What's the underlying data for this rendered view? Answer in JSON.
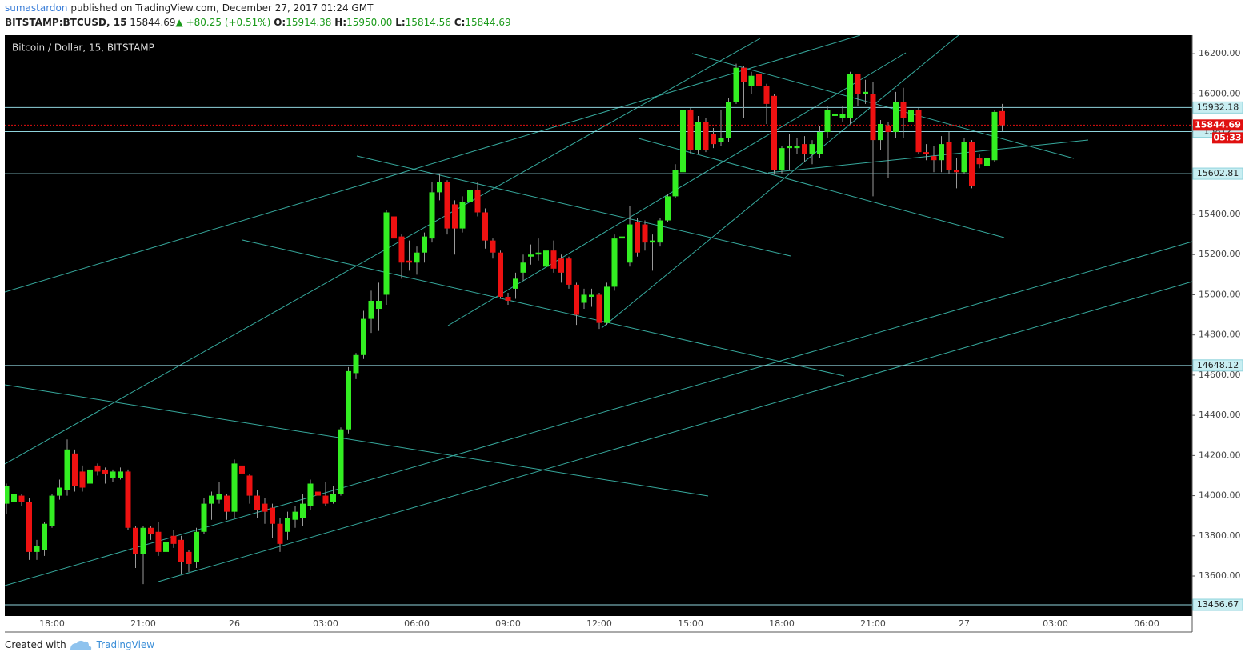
{
  "header": {
    "author": "sumastardon",
    "published": "published on TradingView.com, December 27, 2017 01:24 GMT",
    "symbol": "BITSTAMP:BTCUSD, 15",
    "price": "15844.69",
    "arrow": "▲",
    "change": "+80.25 (+0.51%)",
    "open_label": "O:",
    "open": "15914.38",
    "high_label": "H:",
    "high": "15950.00",
    "low_label": "L:",
    "low": "15814.56",
    "close_label": "C:",
    "close": "15844.69"
  },
  "footer": {
    "created": "Created with",
    "brand": "TradingView"
  },
  "chart_data": {
    "type": "candlestick",
    "title": "Bitcoin / Dollar, 15, BITSTAMP",
    "up_color": "#33ee22",
    "down_color": "#ee1111",
    "wick_color": "#9a9a9a",
    "level_color": "#8fd3dc",
    "last_color": "#e01010",
    "categories": [
      null,
      null,
      null,
      null,
      null,
      null,
      "18:00",
      null,
      null,
      null,
      null,
      null,
      null,
      null,
      null,
      null,
      null,
      null,
      "21:00",
      null,
      null,
      null,
      null,
      null,
      null,
      null,
      null,
      null,
      null,
      null,
      "26",
      null,
      null,
      null,
      null,
      null,
      null,
      null,
      null,
      null,
      null,
      null,
      "03:00",
      null,
      null,
      null,
      null,
      null,
      null,
      null,
      null,
      null,
      null,
      null,
      "06:00",
      null,
      null,
      null,
      null,
      null,
      null,
      null,
      null,
      null,
      null,
      null,
      "09:00",
      null,
      null,
      null,
      null,
      null,
      null,
      null,
      null,
      null,
      null,
      null,
      "12:00",
      null,
      null,
      null,
      null,
      null,
      null,
      null,
      null,
      null,
      null,
      null,
      "15:00",
      null,
      null,
      null,
      null,
      null,
      null,
      null,
      null,
      null,
      null,
      null,
      "18:00",
      null,
      null,
      null,
      null,
      null,
      null,
      null,
      null,
      null,
      null,
      null,
      "21:00",
      null,
      null,
      null,
      null,
      null,
      null,
      null,
      null,
      null,
      null,
      null,
      "27",
      null,
      null,
      null,
      null,
      null,
      null,
      null,
      null,
      null,
      null,
      null,
      "03:00",
      null,
      null,
      null,
      null,
      null,
      null,
      null,
      null,
      null,
      null,
      null,
      "06:00",
      null,
      null,
      null,
      null,
      null
    ],
    "open": [
      13960,
      13970,
      14000,
      13970,
      13720,
      13730,
      13850,
      14000,
      14030,
      14210,
      14120,
      14060,
      14150,
      14130,
      14090,
      14090,
      14120,
      13840,
      13710,
      13840,
      13820,
      13720,
      13800,
      13780,
      13720,
      13670,
      13820,
      13960,
      13980,
      14000,
      13920,
      14150,
      14100,
      14000,
      13960,
      13940,
      13860,
      13820,
      13880,
      13890,
      13950,
      14020,
      14000,
      13970,
      14010,
      14330,
      14610,
      14700,
      14880,
      14930,
      15000,
      15390,
      15290,
      15170,
      15160,
      15210,
      15280,
      15510,
      15560,
      15450,
      15330,
      15460,
      15520,
      15410,
      15270,
      15210,
      14990,
      15030,
      15110,
      15190,
      15200,
      15140,
      15220,
      15180,
      15180,
      15050,
      14960,
      14990,
      15000,
      14860,
      15040,
      15280,
      15160,
      15360,
      15350,
      15260,
      15260,
      15370,
      15490,
      15610,
      15920,
      15720,
      15860,
      15800,
      15760,
      15780,
      15960,
      16130,
      16040,
      16100,
      16040,
      15990,
      15620,
      15730,
      15730,
      15750,
      15700,
      15700,
      15810,
      15890,
      15880,
      15880,
      16100,
      16000,
      16000,
      15770,
      15840,
      15810,
      15960,
      15860,
      15920,
      15710,
      15690,
      15670,
      15760,
      15620,
      15610,
      15760,
      15680,
      15640,
      15670,
      15914.38,
      null,
      null,
      null,
      null,
      null,
      null,
      null,
      null,
      null,
      null,
      null,
      null,
      null,
      null,
      null,
      null,
      null,
      null,
      null,
      null,
      null,
      null,
      null,
      null
    ],
    "high": [
      14060,
      14030,
      14010,
      13990,
      13780,
      13870,
      14010,
      14080,
      14280,
      14230,
      14150,
      14170,
      14160,
      14140,
      14130,
      14140,
      14130,
      13850,
      13850,
      13850,
      13870,
      13820,
      13830,
      13800,
      13730,
      13840,
      13990,
      14020,
      14070,
      14010,
      14180,
      14230,
      14110,
      14030,
      13990,
      13960,
      13890,
      13920,
      13950,
      14010,
      14080,
      14060,
      14070,
      14050,
      14340,
      14640,
      14710,
      14920,
      15020,
      15060,
      15420,
      15500,
      15300,
      15270,
      15240,
      15310,
      15560,
      15600,
      15570,
      15470,
      15490,
      15540,
      15560,
      15430,
      15280,
      15220,
      15010,
      15110,
      15200,
      15250,
      15280,
      15260,
      15270,
      15200,
      15190,
      15060,
      15030,
      15030,
      15010,
      15060,
      15300,
      15320,
      15440,
      15380,
      15370,
      15300,
      15380,
      15500,
      15650,
      15940,
      15930,
      15890,
      15880,
      15830,
      15920,
      15980,
      16150,
      16140,
      16110,
      16130,
      16050,
      16000,
      15740,
      15800,
      15780,
      15790,
      15770,
      15840,
      15940,
      15950,
      15940,
      16110,
      16100,
      16070,
      16060,
      15870,
      15860,
      16010,
      16030,
      15980,
      15930,
      15750,
      15740,
      15790,
      15810,
      15680,
      15780,
      15770,
      15700,
      15700,
      15920,
      15950,
      null,
      null,
      null,
      null,
      null,
      null,
      null,
      null,
      null,
      null,
      null,
      null,
      null,
      null,
      null,
      null,
      null,
      null,
      null,
      null,
      null,
      null,
      null,
      null
    ],
    "low": [
      13910,
      13960,
      13950,
      13680,
      13680,
      13700,
      13840,
      13980,
      14000,
      14020,
      14020,
      14040,
      14100,
      14060,
      14070,
      14080,
      13830,
      13640,
      13560,
      13780,
      13700,
      13660,
      13740,
      13610,
      13620,
      13640,
      13810,
      13880,
      13960,
      13880,
      13890,
      14090,
      13960,
      13890,
      13860,
      13790,
      13720,
      13780,
      13840,
      13850,
      13930,
      13970,
      13950,
      13960,
      14000,
      14310,
      14580,
      14680,
      14810,
      14820,
      14950,
      15210,
      15080,
      15120,
      15100,
      15160,
      15260,
      15470,
      15300,
      15200,
      15310,
      15440,
      15390,
      15230,
      15180,
      14980,
      14950,
      14980,
      15070,
      15150,
      15170,
      15110,
      15110,
      15060,
      15030,
      14850,
      14930,
      14940,
      14830,
      14850,
      15020,
      15250,
      15140,
      15190,
      15220,
      15120,
      15240,
      15360,
      15480,
      15600,
      15700,
      15700,
      15710,
      15730,
      15740,
      15760,
      15950,
      15880,
      16000,
      16020,
      15850,
      15600,
      15600,
      15620,
      15700,
      15660,
      15650,
      15680,
      15780,
      15860,
      15860,
      15850,
      15940,
      15950,
      15490,
      15720,
      15580,
      15780,
      15780,
      15840,
      15700,
      15670,
      15610,
      15610,
      15600,
      15530,
      15600,
      15530,
      15630,
      15620,
      15660,
      15814.56,
      null,
      null,
      null,
      null,
      null,
      null,
      null,
      null,
      null,
      null,
      null,
      null,
      null,
      null,
      null,
      null,
      null,
      null,
      null,
      null,
      null,
      null,
      null,
      null
    ],
    "close": [
      14050,
      14010,
      13970,
      13720,
      13750,
      13860,
      14000,
      14040,
      14230,
      14050,
      14040,
      14130,
      14120,
      14110,
      14120,
      14120,
      13840,
      13710,
      13840,
      13810,
      13720,
      13770,
      13760,
      13670,
      13660,
      13820,
      13960,
      14000,
      14010,
      13920,
      14160,
      14110,
      14000,
      13930,
      13920,
      13860,
      13760,
      13890,
      13920,
      13960,
      14060,
      14000,
      13960,
      14010,
      14330,
      14620,
      14700,
      14880,
      14970,
      14970,
      15410,
      15280,
      15160,
      15160,
      15210,
      15290,
      15510,
      15560,
      15330,
      15330,
      15460,
      15520,
      15410,
      15270,
      15210,
      14990,
      14970,
      15080,
      15160,
      15200,
      15210,
      15220,
      15130,
      15110,
      15050,
      14900,
      15000,
      15000,
      14860,
      15040,
      15280,
      15290,
      15350,
      15210,
      15260,
      15270,
      15370,
      15490,
      15620,
      15920,
      15720,
      15860,
      15720,
      15750,
      15780,
      15960,
      16130,
      16060,
      16090,
      16040,
      15950,
      15620,
      15730,
      15740,
      15740,
      15700,
      15750,
      15810,
      15920,
      15900,
      15900,
      16100,
      16000,
      16010,
      15770,
      15850,
      15810,
      15960,
      15880,
      15920,
      15710,
      15700,
      15670,
      15750,
      15620,
      15610,
      15760,
      15540,
      15650,
      15680,
      15910,
      15844.69,
      null,
      null,
      null,
      null,
      null,
      null,
      null,
      null,
      null,
      null,
      null,
      null,
      null,
      null,
      null,
      null,
      null,
      null,
      null,
      null,
      null,
      null,
      null,
      null
    ],
    "ylim": [
      13401,
      16292
    ],
    "yticks": [
      {
        "value": 13600,
        "label": "13600.00"
      },
      {
        "value": 13800,
        "label": "13800.00"
      },
      {
        "value": 14000,
        "label": "14000.00"
      },
      {
        "value": 14200,
        "label": "14200.00"
      },
      {
        "value": 14400,
        "label": "14400.00"
      },
      {
        "value": 14600,
        "label": "14600.00"
      },
      {
        "value": 14800,
        "label": "14800.00"
      },
      {
        "value": 15000,
        "label": "15000.00"
      },
      {
        "value": 15200,
        "label": "15200.00"
      },
      {
        "value": 15400,
        "label": "15400.00"
      },
      {
        "value": 15600,
        "label": "15600.00"
      },
      {
        "value": 15800,
        "label": "15800.00"
      },
      {
        "value": 16000,
        "label": "16000.00"
      },
      {
        "value": 16200,
        "label": "16200.00"
      }
    ],
    "levels": [
      15932.18,
      15812,
      15602.81,
      14648.12,
      13456.67
    ],
    "last_price": 15844.69,
    "countdown": "05:33"
  }
}
